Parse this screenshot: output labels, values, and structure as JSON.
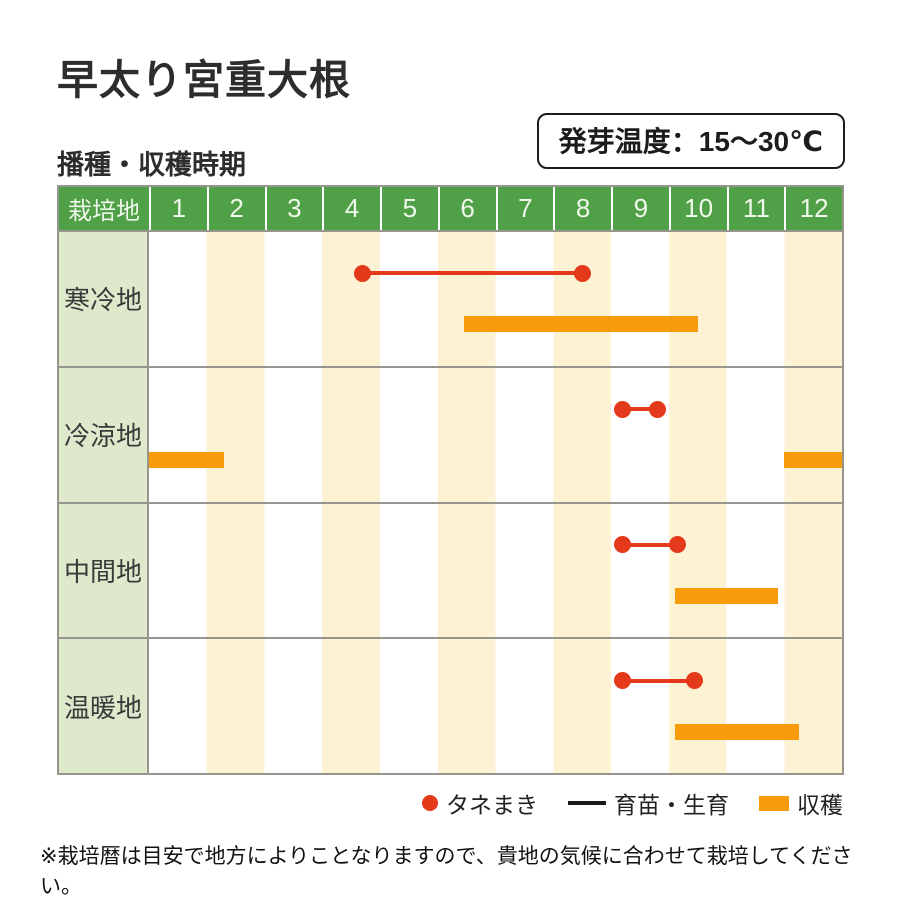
{
  "title": "早太り宮重大根",
  "section_label": "播種・収穫時期",
  "badge": {
    "text": "発芽温度：15～30℃"
  },
  "table": {
    "corner_label": "栽培地",
    "months": [
      "1",
      "2",
      "3",
      "4",
      "5",
      "6",
      "7",
      "8",
      "9",
      "10",
      "11",
      "12"
    ]
  },
  "chart_data": {
    "type": "gantt",
    "title": "播種・収穫時期 (月: 1-12)",
    "x_axis": {
      "unit": "month",
      "range": [
        0,
        12
      ],
      "ticks": [
        "1",
        "2",
        "3",
        "4",
        "5",
        "6",
        "7",
        "8",
        "9",
        "10",
        "11",
        "12"
      ]
    },
    "rows": [
      {
        "region": "寒冷地",
        "sowing_growth": [
          {
            "start": 3.7,
            "end": 7.5
          }
        ],
        "harvest": [
          {
            "start": 5.45,
            "end": 9.5
          }
        ]
      },
      {
        "region": "冷涼地",
        "sowing_growth": [
          {
            "start": 8.2,
            "end": 8.8
          }
        ],
        "harvest": [
          {
            "start": 0,
            "end": 1.3
          },
          {
            "start": 11.0,
            "end": 12
          }
        ]
      },
      {
        "region": "中間地",
        "sowing_growth": [
          {
            "start": 8.2,
            "end": 9.15
          }
        ],
        "harvest": [
          {
            "start": 9.1,
            "end": 10.9
          }
        ]
      },
      {
        "region": "温暖地",
        "sowing_growth": [
          {
            "start": 8.2,
            "end": 9.45
          }
        ],
        "harvest": [
          {
            "start": 9.1,
            "end": 11.25
          }
        ]
      }
    ],
    "colors": {
      "header_green": "#4fa046",
      "region_label_bg": "#dee9cc",
      "stripe_cream": "#fdf2d4",
      "harvest_orange": "#f89c0c",
      "sow_red": "#e5391b",
      "legend_line_black": "#1a1a1a",
      "grid_border": "#96968e"
    },
    "legend_position": "bottom-right",
    "grid": "alternating month stripes"
  },
  "legend": {
    "sow": "タネまき",
    "grow": "育苗・生育",
    "harvest": "収穫"
  },
  "footnote": "※栽培暦は目安で地方によりことなりますので、貴地の気候に合わせて栽培してください。"
}
